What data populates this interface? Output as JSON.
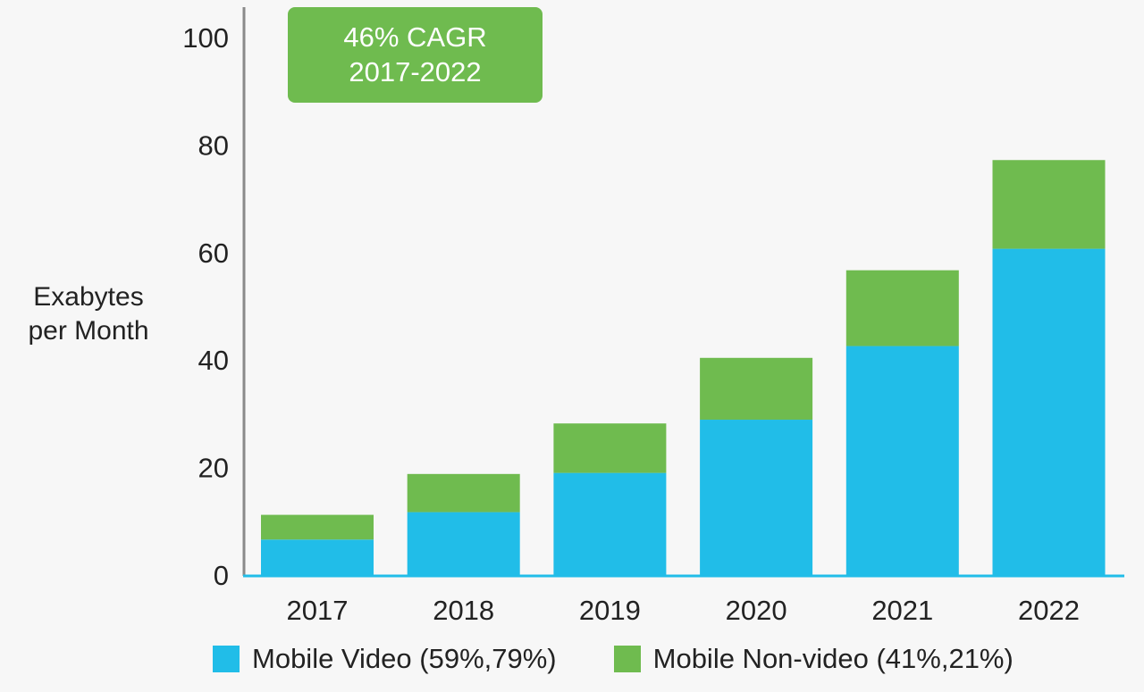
{
  "annotation": {
    "line1": "46% CAGR",
    "line2": "2017-2022"
  },
  "chart_data": {
    "type": "bar",
    "stacked": true,
    "title": "",
    "xlabel": "",
    "ylabel_lines": [
      "Exabytes",
      "per Month"
    ],
    "categories": [
      "2017",
      "2018",
      "2019",
      "2020",
      "2021",
      "2022"
    ],
    "series": [
      {
        "name": "Mobile Video (59%,79%)",
        "color": "#21bde8",
        "values": [
          6.6,
          11.7,
          19.0,
          28.9,
          42.6,
          60.7
        ]
      },
      {
        "name": "Mobile Non-video (41%,21%)",
        "color": "#6fbb4f",
        "values": [
          4.6,
          7.1,
          9.2,
          11.5,
          14.1,
          16.5
        ]
      }
    ],
    "ylim": [
      0,
      100
    ],
    "yticks": [
      0,
      20,
      40,
      60,
      80,
      100
    ],
    "grid": false,
    "legend_position": "bottom"
  }
}
